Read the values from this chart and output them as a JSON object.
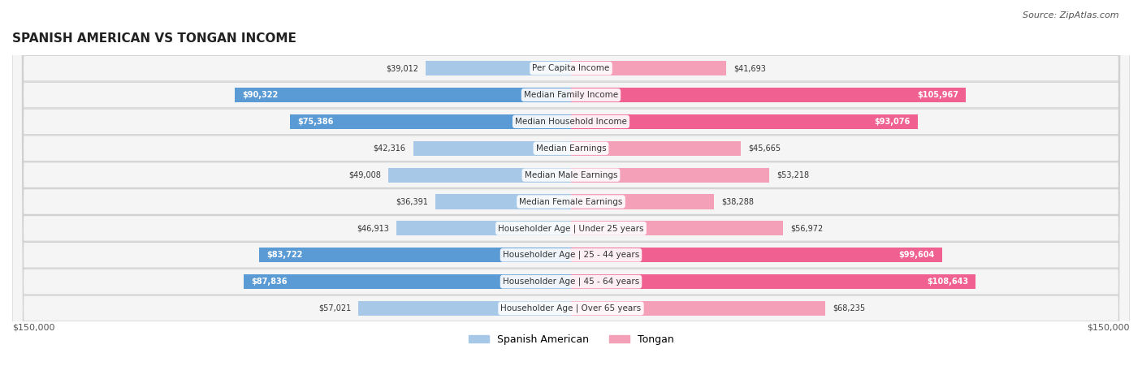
{
  "title": "SPANISH AMERICAN VS TONGAN INCOME",
  "source": "Source: ZipAtlas.com",
  "categories": [
    "Per Capita Income",
    "Median Family Income",
    "Median Household Income",
    "Median Earnings",
    "Median Male Earnings",
    "Median Female Earnings",
    "Householder Age | Under 25 years",
    "Householder Age | 25 - 44 years",
    "Householder Age | 45 - 64 years",
    "Householder Age | Over 65 years"
  ],
  "spanish_american": [
    39012,
    90322,
    75386,
    42316,
    49008,
    36391,
    46913,
    83722,
    87836,
    57021
  ],
  "tongan": [
    41693,
    105967,
    93076,
    45665,
    53218,
    38288,
    56972,
    99604,
    108643,
    68235
  ],
  "spanish_color_light": "#a8c8e8",
  "spanish_color_dark": "#5b9bd5",
  "tongan_color_light": "#f4a0b8",
  "tongan_color_dark": "#f06090",
  "bar_bg_color": "#f0f0f0",
  "row_bg_color": "#f5f5f5",
  "row_border_color": "#d0d0d0",
  "max_value": 150000,
  "legend_spanish": "Spanish American",
  "legend_tongan": "Tongan",
  "xlabel_left": "$150,000",
  "xlabel_right": "$150,000"
}
